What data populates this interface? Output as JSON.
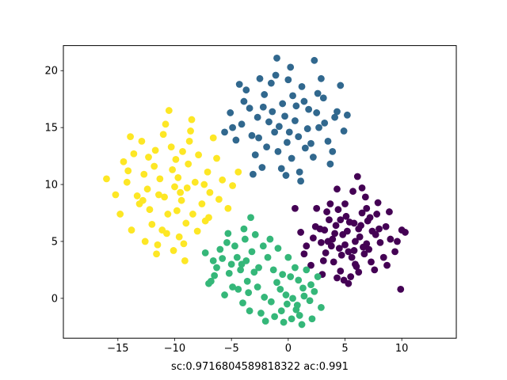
{
  "chart_data": {
    "type": "scatter",
    "title": "",
    "xlabel": "sc:0.9716804589818322 ac:0.991",
    "ylabel": "",
    "xlim": [
      -19.8,
      14.8
    ],
    "ylim": [
      -3.5,
      22.2
    ],
    "x_ticks": [
      -15,
      -10,
      -5,
      0,
      5,
      10
    ],
    "y_ticks": [
      0,
      5,
      10,
      15,
      20
    ],
    "grid": false,
    "legend": "none",
    "series": [
      {
        "color": "#440154",
        "center": [
          5.2,
          5.3
        ],
        "spread": 1.7,
        "points": [
          [
            6.2,
            6.1
          ],
          [
            4.5,
            4.4
          ],
          [
            5.8,
            6.6
          ],
          [
            3.9,
            5.2
          ],
          [
            6.9,
            4.8
          ],
          [
            5.1,
            7.2
          ],
          [
            4.2,
            6.4
          ],
          [
            7.4,
            5.9
          ],
          [
            5.6,
            3.6
          ],
          [
            3.3,
            4.0
          ],
          [
            6.5,
            7.5
          ],
          [
            4.8,
            5.6
          ],
          [
            8.1,
            4.9
          ],
          [
            5.3,
            4.1
          ],
          [
            2.8,
            6.1
          ],
          [
            6.0,
            2.8
          ],
          [
            7.0,
            6.8
          ],
          [
            4.0,
            3.2
          ],
          [
            5.9,
            5.0
          ],
          [
            3.6,
            6.9
          ],
          [
            8.6,
            6.3
          ],
          [
            4.6,
            2.4
          ],
          [
            6.7,
            3.9
          ],
          [
            2.2,
            5.3
          ],
          [
            5.0,
            8.3
          ],
          [
            7.8,
            7.4
          ],
          [
            3.1,
            3.3
          ],
          [
            6.3,
            5.4
          ],
          [
            4.4,
            7.8
          ],
          [
            9.0,
            5.2
          ],
          [
            5.5,
            1.9
          ],
          [
            7.3,
            3.2
          ],
          [
            1.6,
            4.6
          ],
          [
            6.8,
            8.9
          ],
          [
            3.4,
            7.6
          ],
          [
            8.4,
            3.6
          ],
          [
            4.9,
            1.6
          ],
          [
            10.0,
            6.0
          ],
          [
            2.5,
            7.9
          ],
          [
            7.6,
            2.5
          ],
          [
            5.7,
            9.4
          ],
          [
            1.1,
            5.8
          ],
          [
            9.4,
            4.1
          ],
          [
            3.0,
            2.1
          ],
          [
            6.1,
            10.7
          ],
          [
            10.3,
            5.8
          ],
          [
            0.6,
            7.9
          ],
          [
            4.3,
            9.6
          ],
          [
            9.9,
            0.8
          ],
          [
            2.0,
            2.9
          ],
          [
            8.9,
            7.6
          ],
          [
            5.4,
            6.7
          ],
          [
            6.6,
            4.5
          ],
          [
            4.7,
            3.8
          ],
          [
            5.2,
            5.9
          ],
          [
            6.4,
            6.4
          ],
          [
            3.8,
            4.6
          ],
          [
            7.1,
            4.3
          ],
          [
            4.1,
            5.7
          ],
          [
            5.9,
            3.0
          ],
          [
            7.7,
            5.6
          ],
          [
            3.5,
            5.0
          ],
          [
            6.9,
            7.9
          ],
          [
            5.0,
            4.7
          ],
          [
            2.9,
            4.9
          ],
          [
            8.0,
            6.1
          ],
          [
            4.6,
            6.9
          ],
          [
            6.2,
            2.3
          ],
          [
            3.7,
            8.3
          ],
          [
            7.2,
            7.1
          ],
          [
            5.3,
            1.3
          ],
          [
            8.7,
            2.9
          ],
          [
            2.4,
            6.3
          ],
          [
            6.5,
            9.7
          ],
          [
            4.3,
            1.8
          ],
          [
            9.6,
            5.0
          ],
          [
            1.4,
            3.9
          ],
          [
            7.9,
            8.4
          ],
          [
            5.8,
            4.2
          ],
          [
            3.2,
            6.0
          ]
        ]
      },
      {
        "color": "#31688e",
        "center": [
          -0.5,
          15.2
        ],
        "spread": 2.0,
        "points": [
          [
            -0.3,
            16.0
          ],
          [
            0.9,
            14.2
          ],
          [
            -1.7,
            15.5
          ],
          [
            0.4,
            17.8
          ],
          [
            -2.6,
            14.1
          ],
          [
            1.8,
            16.6
          ],
          [
            -0.9,
            12.9
          ],
          [
            2.7,
            15.0
          ],
          [
            -3.4,
            16.7
          ],
          [
            -0.1,
            13.7
          ],
          [
            1.2,
            18.6
          ],
          [
            -2.1,
            17.9
          ],
          [
            3.5,
            13.8
          ],
          [
            -1.2,
            14.6
          ],
          [
            0.6,
            15.6
          ],
          [
            -4.1,
            15.3
          ],
          [
            2.2,
            12.4
          ],
          [
            -2.9,
            12.6
          ],
          [
            0.0,
            19.2
          ],
          [
            4.3,
            16.4
          ],
          [
            -1.5,
            18.9
          ],
          [
            1.5,
            13.2
          ],
          [
            -4.6,
            13.9
          ],
          [
            3.1,
            17.6
          ],
          [
            -0.6,
            11.4
          ],
          [
            -3.7,
            18.3
          ],
          [
            2.9,
            19.3
          ],
          [
            -5.1,
            16.3
          ],
          [
            1.0,
            11.1
          ],
          [
            4.9,
            14.7
          ],
          [
            -2.3,
            11.5
          ],
          [
            0.2,
            20.3
          ],
          [
            -4.3,
            18.8
          ],
          [
            5.2,
            16.1
          ],
          [
            -1.0,
            21.1
          ],
          [
            3.7,
            11.8
          ],
          [
            -5.6,
            14.6
          ],
          [
            2.3,
            20.9
          ],
          [
            -3.1,
            10.9
          ],
          [
            4.6,
            18.7
          ],
          [
            0.7,
            16.9
          ],
          [
            -1.9,
            13.3
          ],
          [
            1.7,
            14.9
          ],
          [
            -0.5,
            17.1
          ],
          [
            2.5,
            16.3
          ],
          [
            -2.7,
            15.9
          ],
          [
            0.3,
            12.3
          ],
          [
            -1.4,
            16.4
          ],
          [
            1.4,
            17.3
          ],
          [
            -3.2,
            14.3
          ],
          [
            3.2,
            15.4
          ],
          [
            -0.8,
            15.1
          ],
          [
            0.1,
            14.6
          ],
          [
            -2.2,
            16.8
          ],
          [
            2.0,
            13.6
          ],
          [
            -1.1,
            19.6
          ],
          [
            3.9,
            12.9
          ],
          [
            -3.9,
            17.3
          ],
          [
            1.1,
            10.3
          ],
          [
            -4.9,
            15.0
          ],
          [
            2.6,
            18.0
          ],
          [
            -0.2,
            10.8
          ],
          [
            4.1,
            15.9
          ],
          [
            -2.5,
            19.3
          ]
        ]
      },
      {
        "color": "#35b779",
        "center": [
          -2.4,
          1.7
        ],
        "spread": 1.9,
        "points": [
          [
            -0.2,
            0.3
          ],
          [
            -4.1,
            3.0
          ],
          [
            0.8,
            -0.6
          ],
          [
            -3.2,
            4.1
          ],
          [
            -1.0,
            1.4
          ],
          [
            -5.2,
            2.2
          ],
          [
            1.3,
            0.9
          ],
          [
            -2.6,
            2.7
          ],
          [
            -0.6,
            -1.1
          ],
          [
            -4.7,
            4.6
          ],
          [
            0.2,
            1.9
          ],
          [
            -3.6,
            1.5
          ],
          [
            1.9,
            -0.2
          ],
          [
            -5.8,
            3.5
          ],
          [
            -1.5,
            -0.3
          ],
          [
            -2.9,
            5.6
          ],
          [
            0.6,
            2.7
          ],
          [
            -4.4,
            0.8
          ],
          [
            2.3,
            0.6
          ],
          [
            -6.3,
            2.7
          ],
          [
            -1.8,
            3.6
          ],
          [
            -0.4,
            -2.1
          ],
          [
            -3.9,
            6.1
          ],
          [
            1.0,
            -1.5
          ],
          [
            -5.4,
            4.9
          ],
          [
            2.6,
            1.9
          ],
          [
            -2.1,
            0.1
          ],
          [
            -6.8,
            1.5
          ],
          [
            0.0,
            3.6
          ],
          [
            -4.0,
            -0.4
          ],
          [
            2.9,
            -0.8
          ],
          [
            -3.3,
            7.1
          ],
          [
            -1.2,
            -1.6
          ],
          [
            -6.0,
            4.3
          ],
          [
            1.6,
            2.5
          ],
          [
            -4.9,
            1.0
          ],
          [
            -0.9,
            4.4
          ],
          [
            -7.3,
            4.0
          ],
          [
            2.1,
            -1.8
          ],
          [
            -2.4,
            -1.3
          ],
          [
            -3.0,
            2.3
          ],
          [
            -0.7,
            0.8
          ],
          [
            -4.5,
            3.6
          ],
          [
            0.4,
            0.0
          ],
          [
            -2.2,
            4.6
          ],
          [
            -5.0,
            3.0
          ],
          [
            0.9,
            1.6
          ],
          [
            -3.5,
            0.5
          ],
          [
            -1.3,
            2.5
          ],
          [
            -6.5,
            2.0
          ],
          [
            -0.1,
            -0.5
          ],
          [
            -3.8,
            5.2
          ],
          [
            1.4,
            0.2
          ],
          [
            -2.7,
            1.0
          ],
          [
            -5.6,
            0.3
          ],
          [
            0.3,
            -1.8
          ],
          [
            -4.2,
            2.5
          ],
          [
            -1.6,
            5.2
          ],
          [
            2.0,
            1.2
          ],
          [
            -7.0,
            1.3
          ],
          [
            -0.5,
            2.1
          ],
          [
            -3.4,
            -1.1
          ],
          [
            1.2,
            -2.3
          ],
          [
            -5.3,
            5.7
          ],
          [
            -2.0,
            -2.0
          ],
          [
            -6.6,
            3.3
          ],
          [
            0.7,
            -1.0
          ],
          [
            -3.7,
            3.3
          ]
        ]
      },
      {
        "color": "#fde725",
        "center": [
          -10.0,
          9.5
        ],
        "spread": 2.0,
        "points": [
          [
            -9.4,
            8.6
          ],
          [
            -11.3,
            10.5
          ],
          [
            -8.2,
            10.2
          ],
          [
            -10.6,
            7.4
          ],
          [
            -12.4,
            9.6
          ],
          [
            -9.9,
            12.2
          ],
          [
            -7.6,
            8.3
          ],
          [
            -11.8,
            11.6
          ],
          [
            -9.0,
            6.6
          ],
          [
            -13.1,
            8.3
          ],
          [
            -10.3,
            13.3
          ],
          [
            -7.1,
            11.1
          ],
          [
            -12.0,
            6.5
          ],
          [
            -8.7,
            13.8
          ],
          [
            -14.2,
            10.2
          ],
          [
            -9.6,
            5.4
          ],
          [
            -6.9,
            9.3
          ],
          [
            -11.0,
            14.4
          ],
          [
            -13.6,
            12.7
          ],
          [
            -8.0,
            5.9
          ],
          [
            -15.2,
            9.1
          ],
          [
            -6.3,
            12.3
          ],
          [
            -12.6,
            5.0
          ],
          [
            -10.8,
            15.3
          ],
          [
            -7.3,
            6.8
          ],
          [
            -14.8,
            7.4
          ],
          [
            -9.2,
            4.8
          ],
          [
            -5.8,
            10.4
          ],
          [
            -13.9,
            14.2
          ],
          [
            -11.6,
            3.9
          ],
          [
            -6.6,
            14.1
          ],
          [
            -16.0,
            10.5
          ],
          [
            -8.5,
            15.7
          ],
          [
            -12.9,
            13.8
          ],
          [
            -10.1,
            4.2
          ],
          [
            -5.3,
            7.9
          ],
          [
            -14.5,
            12.0
          ],
          [
            -9.1,
            3.3
          ],
          [
            -10.5,
            16.5
          ],
          [
            -4.9,
            9.9
          ],
          [
            -12.2,
            7.8
          ],
          [
            -8.9,
            9.7
          ],
          [
            -10.9,
            8.9
          ],
          [
            -9.7,
            10.6
          ],
          [
            -11.4,
            9.1
          ],
          [
            -8.4,
            7.4
          ],
          [
            -10.2,
            11.3
          ],
          [
            -12.7,
            10.9
          ],
          [
            -7.9,
            12.6
          ],
          [
            -11.1,
            6.0
          ],
          [
            -9.5,
            9.3
          ],
          [
            -13.3,
            9.0
          ],
          [
            -8.8,
            11.8
          ],
          [
            -10.7,
            5.7
          ],
          [
            -7.4,
            10.0
          ],
          [
            -12.3,
            12.4
          ],
          [
            -9.8,
            7.7
          ],
          [
            -11.7,
            13.0
          ],
          [
            -6.1,
            8.7
          ],
          [
            -13.8,
            6.0
          ],
          [
            -8.6,
            14.7
          ],
          [
            -10.0,
            9.8
          ],
          [
            -7.0,
            7.1
          ],
          [
            -12.8,
            8.6
          ],
          [
            -9.3,
            12.9
          ],
          [
            -14.1,
            11.2
          ],
          [
            -4.4,
            11.1
          ],
          [
            -11.5,
            4.7
          ]
        ]
      }
    ]
  }
}
